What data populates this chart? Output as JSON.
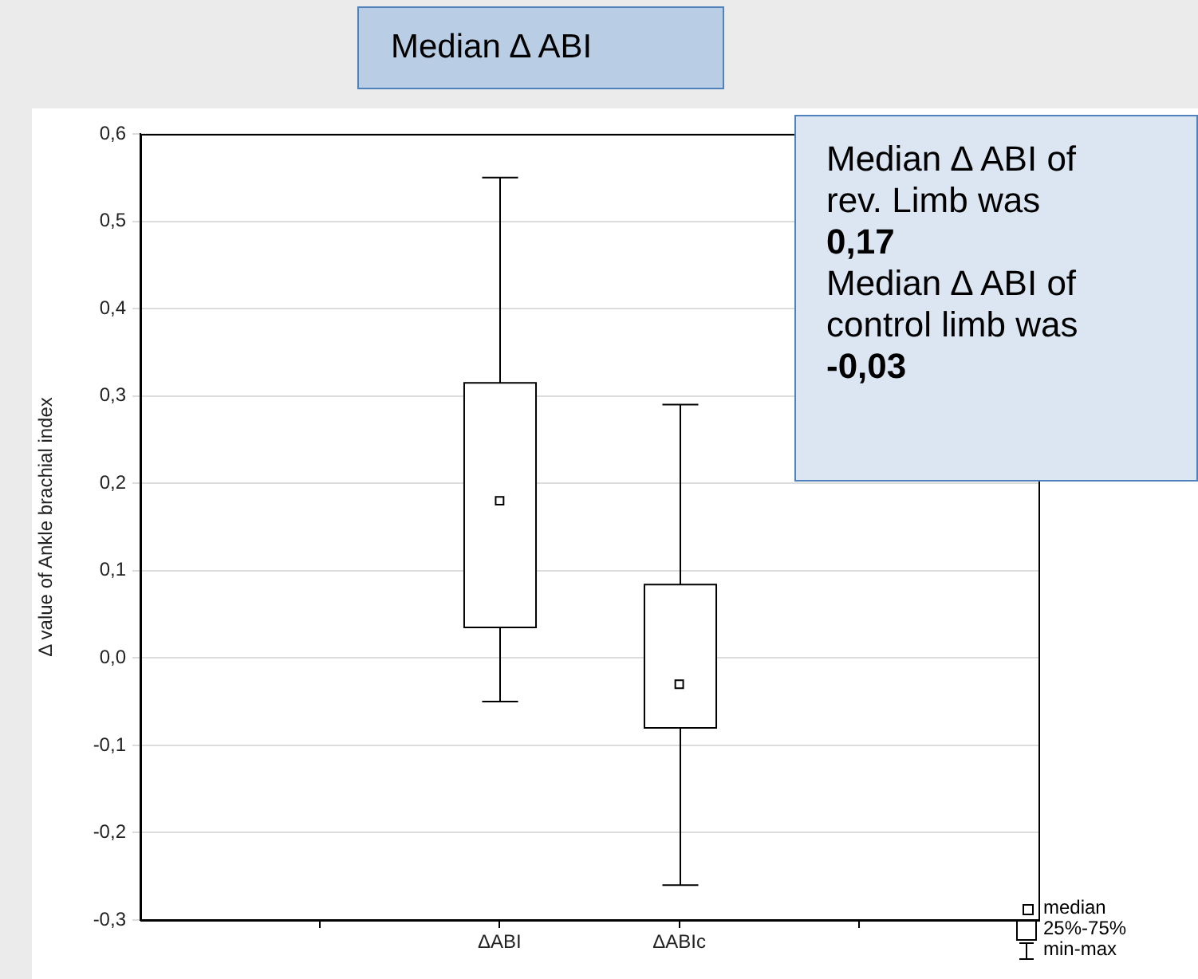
{
  "chart_data": {
    "type": "box",
    "title": "Median ∆ ABI",
    "ylabel": "Δ value of Ankle brachial index",
    "categories": [
      "ΔABI",
      "ΔABIc"
    ],
    "boxes": [
      {
        "low": -0.05,
        "q1": 0.035,
        "median": 0.18,
        "q3": 0.315,
        "high": 0.55
      },
      {
        "low": -0.26,
        "q1": -0.08,
        "median": -0.03,
        "q3": 0.084,
        "high": 0.29
      }
    ],
    "ylim": [
      -0.3,
      0.6
    ],
    "yticks": [
      {
        "value": -0.3,
        "label": "-0,3"
      },
      {
        "value": -0.2,
        "label": "-0,2"
      },
      {
        "value": -0.1,
        "label": "-0,1"
      },
      {
        "value": 0,
        "label": "0,0"
      },
      {
        "value": 0.1,
        "label": "0,1"
      },
      {
        "value": 0.2,
        "label": "0,2"
      },
      {
        "value": 0.3,
        "label": "0,3"
      },
      {
        "value": 0.4,
        "label": "0,4"
      },
      {
        "value": 0.5,
        "label": "0,5"
      },
      {
        "value": 0.6,
        "label": "0,6"
      }
    ],
    "grid": "y",
    "marker": "square",
    "annotations": [
      "Median ∆ ABI of rev. Limb was",
      "0,17",
      "Median ∆ ABI of control limb was",
      "-0,03",
      "median",
      "25%-75%",
      "min-max"
    ]
  }
}
